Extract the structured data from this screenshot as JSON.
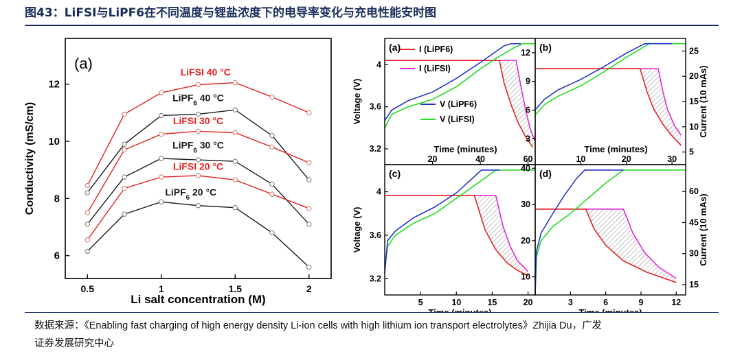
{
  "title": "图43：LiFSI与LiPF6在不同温度与锂盐浓度下的电导率变化与充电性能安时图",
  "source": {
    "prefix": "数据来源：",
    "citation": "《Enabling fast charging of high energy density Li-ion cells with high lithium ion transport electrolytes》Zhijia Du，广发",
    "line2": "证券发展研究中心"
  },
  "colors": {
    "red": "#e8211d",
    "black": "#1b1b1b",
    "blue": "#2233cc",
    "green": "#22dd22",
    "magenta": "#e02ad6",
    "title": "#1a2d5a"
  },
  "chart_data": [
    {
      "panel": "(a)",
      "type": "line",
      "xlabel": "Li salt concentration (M)",
      "ylabel": "Conductivity (mS/cm)",
      "xlim": [
        0.35,
        2.15
      ],
      "ylim": [
        5.2,
        13.6
      ],
      "xticks": [
        "0.5",
        "1",
        "1.5",
        "2"
      ],
      "yticks": [
        "6",
        "8",
        "10",
        "12"
      ],
      "x": [
        0.5,
        0.75,
        1.0,
        1.25,
        1.5,
        1.75,
        2.0
      ],
      "series": [
        {
          "name": "LiFSI 40 °C",
          "color": "red",
          "values": [
            8.45,
            10.95,
            11.7,
            11.98,
            12.05,
            11.55,
            11.0
          ]
        },
        {
          "name": "LiPF6 40 °C",
          "color": "black",
          "values": [
            8.2,
            9.9,
            10.9,
            10.95,
            11.1,
            10.2,
            8.65
          ]
        },
        {
          "name": "LiFSI 30 °C",
          "color": "red",
          "values": [
            7.5,
            9.7,
            10.25,
            10.35,
            10.3,
            9.8,
            9.25
          ]
        },
        {
          "name": "LiPF6 30 °C",
          "color": "black",
          "values": [
            7.1,
            8.75,
            9.4,
            9.35,
            9.3,
            8.5,
            7.1
          ]
        },
        {
          "name": "LiFSI 20 °C",
          "color": "red",
          "values": [
            6.55,
            8.35,
            8.75,
            8.8,
            8.65,
            8.15,
            7.65
          ]
        },
        {
          "name": "LiPF6 20 °C",
          "color": "black",
          "values": [
            6.15,
            7.45,
            7.88,
            7.75,
            7.68,
            6.8,
            5.6
          ]
        }
      ],
      "labels": [
        {
          "text": "LiFSI 40 °C",
          "color": "red",
          "at": [
            1.3,
            12.3
          ]
        },
        {
          "text": "LiPF6 40 °C",
          "color": "black",
          "at": [
            1.25,
            11.4
          ]
        },
        {
          "text": "LiFSI 30 °C",
          "color": "red",
          "at": [
            1.25,
            10.6
          ]
        },
        {
          "text": "LiPF6 30 °C",
          "color": "black",
          "at": [
            1.25,
            9.75
          ]
        },
        {
          "text": "LiFSI 20 °C",
          "color": "red",
          "at": [
            1.25,
            9.0
          ]
        },
        {
          "text": "LiPF6 20 °C",
          "color": "black",
          "at": [
            1.2,
            8.1
          ]
        }
      ]
    },
    {
      "panel": "(a)",
      "type": "line",
      "xlabel": "Time (minutes)",
      "ylabel_left": "Voltage (V)",
      "xlim": [
        0,
        63
      ],
      "ylim": [
        3.05,
        4.25
      ],
      "y2lim": [
        0.3,
        13.5
      ],
      "xticks": [
        "20",
        "40",
        "60"
      ],
      "yticks": [
        "3.2",
        "3.6",
        "4"
      ],
      "y2ticks": [
        "3",
        "6",
        "9",
        "12"
      ],
      "legend": [
        "I (LiPF6)",
        "I (LiFSI)",
        "V (LiPF6)",
        "V (LiFSI)"
      ],
      "voltage": [
        {
          "name": "V (LiPF6)",
          "color": "blue",
          "points": [
            [
              0,
              3.47
            ],
            [
              3,
              3.57
            ],
            [
              10,
              3.66
            ],
            [
              20,
              3.74
            ],
            [
              30,
              3.87
            ],
            [
              40,
              4.02
            ],
            [
              45,
              4.1
            ],
            [
              50,
              4.18
            ],
            [
              53,
              4.2
            ],
            [
              57,
              4.2
            ]
          ]
        },
        {
          "name": "V (LiFSI)",
          "color": "green",
          "points": [
            [
              0,
              3.4
            ],
            [
              3,
              3.53
            ],
            [
              10,
              3.6
            ],
            [
              20,
              3.67
            ],
            [
              30,
              3.79
            ],
            [
              40,
              3.96
            ],
            [
              48,
              4.08
            ],
            [
              54,
              4.16
            ],
            [
              58,
              4.2
            ],
            [
              63,
              4.2
            ]
          ]
        }
      ],
      "current": [
        {
          "name": "I (LiPF6)",
          "color": "red",
          "points": [
            [
              0,
              11.2
            ],
            [
              48,
              11.2
            ],
            [
              50,
              8.8
            ],
            [
              53,
              6.5
            ],
            [
              56,
              4.6
            ],
            [
              59,
              3.2
            ],
            [
              62,
              2.1
            ]
          ]
        },
        {
          "name": "I (LiFSI)",
          "color": "magenta",
          "points": [
            [
              0,
              11.2
            ],
            [
              55,
              11.2
            ],
            [
              57,
              8.5
            ],
            [
              59,
              6.0
            ],
            [
              61,
              4.0
            ],
            [
              63,
              2.7
            ]
          ]
        }
      ]
    },
    {
      "panel": "(b)",
      "type": "line",
      "xlabel": "Time (minutes)",
      "ylabel_right": "Current (10 mAs)",
      "xlim": [
        0,
        33
      ],
      "ylim": [
        3.05,
        4.25
      ],
      "y2lim": [
        2.5,
        27.5
      ],
      "xticks": [
        "10",
        "20",
        "30"
      ],
      "y2ticks": [
        "5",
        "10",
        "15",
        "20",
        "25"
      ],
      "voltage": [
        {
          "name": "V (LiPF6)",
          "color": "blue",
          "points": [
            [
              0,
              3.57
            ],
            [
              2,
              3.67
            ],
            [
              5,
              3.76
            ],
            [
              10,
              3.86
            ],
            [
              15,
              3.98
            ],
            [
              20,
              4.11
            ],
            [
              24,
              4.2
            ],
            [
              30,
              4.2
            ]
          ]
        },
        {
          "name": "V (LiFSI)",
          "color": "green",
          "points": [
            [
              0,
              3.52
            ],
            [
              2,
              3.62
            ],
            [
              5,
              3.7
            ],
            [
              10,
              3.8
            ],
            [
              15,
              3.93
            ],
            [
              20,
              4.07
            ],
            [
              25,
              4.2
            ],
            [
              33,
              4.2
            ]
          ]
        }
      ],
      "current": [
        {
          "name": "I (LiPF6)",
          "color": "red",
          "points": [
            [
              0,
              21.5
            ],
            [
              23,
              21.5
            ],
            [
              24.5,
              17
            ],
            [
              26,
              13.5
            ],
            [
              28,
              10.5
            ],
            [
              30,
              8.2
            ],
            [
              32,
              6.3
            ]
          ]
        },
        {
          "name": "I (LiFSI)",
          "color": "magenta",
          "points": [
            [
              0,
              21.5
            ],
            [
              27,
              21.5
            ],
            [
              28,
              17
            ],
            [
              29,
              13.5
            ],
            [
              30.5,
              10.3
            ],
            [
              32,
              8.3
            ]
          ]
        }
      ]
    },
    {
      "panel": "(c)",
      "type": "line",
      "xlabel": "Time (minutes)",
      "ylabel_left": "Voltage (V)",
      "xlim": [
        0,
        21
      ],
      "ylim": [
        3.05,
        4.25
      ],
      "y2lim": [
        5,
        41
      ],
      "xticks": [
        "5",
        "10",
        "15",
        "20"
      ],
      "yticks": [
        "3.2",
        "3.6",
        "4"
      ],
      "y2ticks": [
        "10",
        "20",
        "30",
        "40"
      ],
      "voltage": [
        {
          "name": "V (LiPF6)",
          "color": "blue",
          "points": [
            [
              0,
              3.25
            ],
            [
              0.4,
              3.55
            ],
            [
              1.5,
              3.64
            ],
            [
              4,
              3.76
            ],
            [
              7,
              3.86
            ],
            [
              10,
              3.99
            ],
            [
              12,
              4.11
            ],
            [
              13.5,
              4.2
            ],
            [
              16,
              4.2
            ]
          ]
        },
        {
          "name": "V (LiFSI)",
          "color": "green",
          "points": [
            [
              0,
              3.3
            ],
            [
              0.4,
              3.5
            ],
            [
              1.5,
              3.6
            ],
            [
              4,
              3.71
            ],
            [
              7,
              3.8
            ],
            [
              10,
              3.94
            ],
            [
              13,
              4.08
            ],
            [
              15.5,
              4.2
            ],
            [
              21,
              4.2
            ]
          ]
        }
      ],
      "current": [
        {
          "name": "I (LiPF6)",
          "color": "red",
          "points": [
            [
              0,
              32.5
            ],
            [
              12.5,
              32.5
            ],
            [
              14,
              23
            ],
            [
              15.5,
              17.5
            ],
            [
              17,
              14
            ],
            [
              18.5,
              11.8
            ],
            [
              20,
              10.3
            ]
          ]
        },
        {
          "name": "I (LiFSI)",
          "color": "magenta",
          "points": [
            [
              0,
              32.5
            ],
            [
              15.5,
              32.5
            ],
            [
              16.5,
              24
            ],
            [
              17.5,
              18.5
            ],
            [
              18.5,
              14.5
            ],
            [
              20,
              11.5
            ]
          ]
        }
      ]
    },
    {
      "panel": "(d)",
      "type": "line",
      "xlabel": "Time (minutes)",
      "ylabel_right": "Current (10 mAs)",
      "xlim": [
        0,
        12.8
      ],
      "ylim": [
        3.05,
        4.25
      ],
      "y2lim": [
        10,
        73
      ],
      "xticks": [
        "3",
        "6",
        "9",
        "12"
      ],
      "y2ticks": [
        "15",
        "30",
        "45",
        "60"
      ],
      "voltage": [
        {
          "name": "V (LiPF6)",
          "color": "blue",
          "points": [
            [
              0,
              3.05
            ],
            [
              0.1,
              3.45
            ],
            [
              0.5,
              3.62
            ],
            [
              1.5,
              3.8
            ],
            [
              2.5,
              3.97
            ],
            [
              3.5,
              4.12
            ],
            [
              4.2,
              4.2
            ],
            [
              7.5,
              4.2
            ]
          ]
        },
        {
          "name": "V (LiFSI)",
          "color": "green",
          "points": [
            [
              0,
              3.05
            ],
            [
              0.1,
              3.4
            ],
            [
              0.5,
              3.55
            ],
            [
              1.5,
              3.68
            ],
            [
              3,
              3.8
            ],
            [
              4.5,
              3.94
            ],
            [
              6,
              4.08
            ],
            [
              7.5,
              4.2
            ],
            [
              12.8,
              4.2
            ]
          ]
        }
      ],
      "current": [
        {
          "name": "I (LiPF6)",
          "color": "red",
          "points": [
            [
              0,
              51.5
            ],
            [
              4.3,
              51.5
            ],
            [
              5,
              42
            ],
            [
              6,
              34
            ],
            [
              7.5,
              26.5
            ],
            [
              9.5,
              21
            ],
            [
              12,
              16
            ]
          ]
        },
        {
          "name": "I (LiFSI)",
          "color": "magenta",
          "points": [
            [
              0,
              51.5
            ],
            [
              7.5,
              51.5
            ],
            [
              8.3,
              40
            ],
            [
              9.3,
              30.5
            ],
            [
              10.5,
              23.5
            ],
            [
              12,
              18
            ]
          ]
        }
      ]
    }
  ]
}
